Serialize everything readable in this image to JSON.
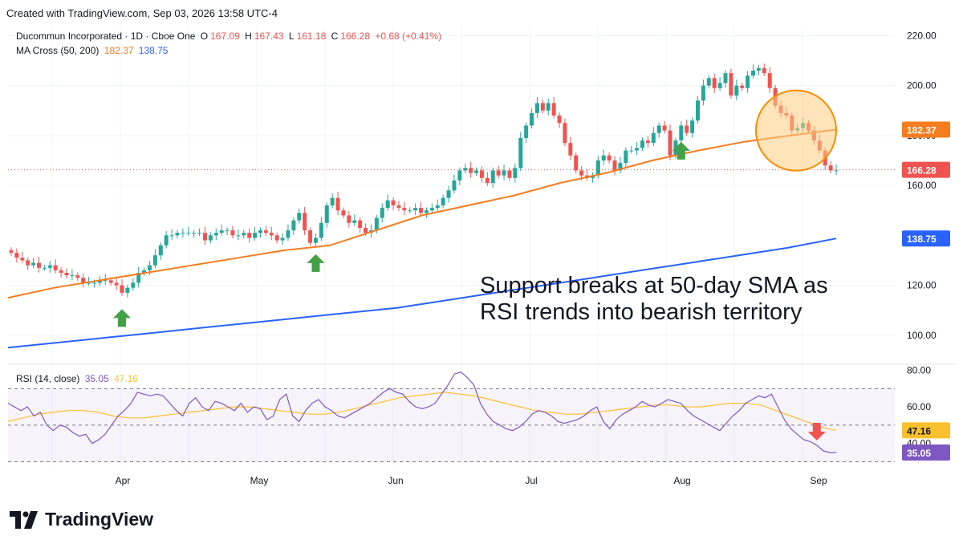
{
  "header": {
    "text": "Created with TradingView.com, Sep 03, 2026 13:58 UTC-4"
  },
  "legend": {
    "symbol": "Ducommun Incorporated · 1D · Cboe One",
    "o_label": "O",
    "o": "167.09",
    "h_label": "H",
    "h": "167.43",
    "l_label": "L",
    "l": "161.18",
    "c_label": "C",
    "c": "166.28",
    "change": "+0.68 (+0.41%)",
    "ma_label": "MA Cross (50, 200)",
    "ma50": "182.37",
    "ma200": "138.75",
    "rsi_label": "RSI (14, close)",
    "rsi": "35.05",
    "rsi_ma": "47.16"
  },
  "annotation": {
    "line1": "Support breaks at 50-day SMA as",
    "line2": "RSI trends into bearish territory"
  },
  "footer": {
    "brand": "TradingView"
  },
  "colors": {
    "up": "#26a69a",
    "down": "#ef5350",
    "ma50": "#f57c1f",
    "ma200": "#2962ff",
    "rsi": "#7e57c2",
    "rsi_ma": "#fbc02d",
    "arrow_up": "#43a047",
    "arrow_down": "#ef5350",
    "highlight": "#ffcc80"
  },
  "chart_data": [
    {
      "type": "candlestick",
      "x_ticks": [
        "Apr",
        "May",
        "Jun",
        "Jul",
        "Aug",
        "Sep"
      ],
      "y_ticks": [
        "220.00",
        "200.00",
        "180.00",
        "160.00",
        "120.00",
        "100.00"
      ],
      "ylim": [
        89,
        224
      ],
      "last_price_tag": "166.28",
      "ma50_tag": "182.37",
      "ma200_tag": "138.75",
      "close": [
        133,
        131,
        130,
        128,
        129,
        127,
        127,
        128,
        126,
        125,
        124,
        124,
        123,
        121,
        121,
        121,
        122,
        122,
        121,
        120,
        117,
        119,
        121,
        125,
        126,
        128,
        132,
        136,
        140,
        140,
        141,
        141,
        141,
        141,
        141,
        138,
        140,
        141,
        142,
        142,
        140,
        140,
        141,
        139,
        141,
        142,
        141,
        140,
        138,
        139,
        142,
        146,
        149,
        142,
        137,
        139,
        145,
        152,
        155,
        150,
        148,
        145,
        146,
        143,
        141,
        142,
        147,
        151,
        154,
        152,
        151,
        150,
        150,
        151,
        149,
        150,
        151,
        152,
        155,
        158,
        162,
        166,
        167,
        165,
        166,
        163,
        161,
        166,
        164,
        166,
        163,
        167,
        179,
        184,
        189,
        193,
        190,
        193,
        188,
        185,
        177,
        172,
        166,
        164,
        163,
        164,
        170,
        172,
        170,
        166,
        169,
        174,
        174,
        175,
        178,
        177,
        181,
        184,
        182,
        172,
        178,
        184,
        181,
        186,
        194,
        200,
        203,
        199,
        201,
        205,
        196,
        200,
        199,
        204,
        206,
        207,
        205,
        199,
        192,
        189,
        188,
        182,
        183,
        185,
        182,
        178,
        174,
        168,
        166,
        166
      ],
      "ma50": [
        115,
        119,
        122,
        125,
        128,
        131,
        134,
        136,
        142,
        148,
        152,
        156,
        161,
        165,
        170,
        174,
        177.5,
        180,
        182.37
      ],
      "ma200": [
        95,
        97,
        99,
        101,
        103,
        105,
        107,
        109,
        111,
        114,
        117,
        120,
        123,
        126,
        129,
        132,
        135,
        138.75
      ],
      "up_arrows_at_bar": [
        20,
        55,
        121
      ],
      "highlight_zone": "Aug–Sep breakdown"
    },
    {
      "type": "line",
      "name": "RSI (14, close)",
      "y_ticks": [
        "80.00",
        "60.00",
        "40.00"
      ],
      "ylim": [
        28,
        82
      ],
      "bands": [
        30,
        50,
        70
      ],
      "rsi_tag": "35.05",
      "rsi_ma_tag": "47.16",
      "rsi": [
        62,
        60,
        58,
        60,
        55,
        57,
        50,
        47,
        50,
        49,
        46,
        44,
        45,
        40,
        42,
        45,
        50,
        55,
        58,
        62,
        68,
        67,
        66,
        67,
        66,
        62,
        58,
        55,
        62,
        65,
        60,
        58,
        63,
        62,
        60,
        58,
        62,
        57,
        60,
        59,
        53,
        55,
        64,
        67,
        55,
        52,
        58,
        62,
        64,
        60,
        58,
        55,
        54,
        56,
        58,
        60,
        62,
        65,
        68,
        70,
        68,
        67,
        63,
        60,
        59,
        60,
        62,
        67,
        72,
        78,
        79,
        76,
        72,
        62,
        56,
        52,
        50,
        48,
        47,
        49,
        52,
        56,
        58,
        57,
        55,
        52,
        51,
        52,
        53,
        55,
        58,
        60,
        52,
        48,
        53,
        56,
        58,
        60,
        63,
        61,
        60,
        62,
        64,
        63,
        62,
        58,
        55,
        53,
        51,
        49,
        47,
        51,
        55,
        58,
        62,
        64,
        66,
        65,
        67,
        60,
        53,
        48,
        45,
        42,
        41,
        39,
        36,
        35,
        35.05
      ],
      "rsi_ma": [
        52,
        54,
        56,
        57,
        58,
        58,
        57,
        55,
        54,
        54,
        55,
        56,
        57,
        58,
        59,
        60,
        60,
        59,
        58,
        57,
        56,
        56,
        57,
        59,
        61,
        63,
        65,
        66,
        67,
        68,
        67,
        66,
        64,
        62,
        60,
        58,
        57,
        56,
        56,
        57,
        58,
        59,
        60,
        61,
        61,
        60,
        60,
        61,
        62,
        62,
        61,
        58,
        55,
        52,
        49,
        47.16
      ],
      "down_arrow_at": 125
    }
  ]
}
